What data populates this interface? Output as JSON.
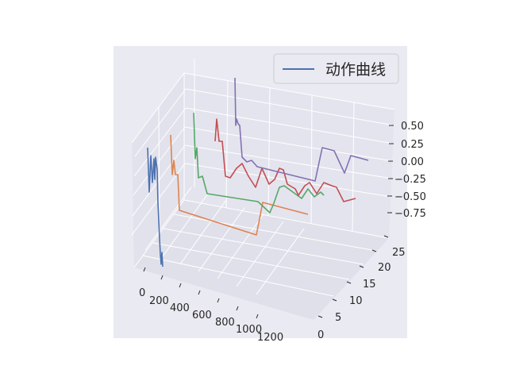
{
  "chart_data": {
    "type": "line",
    "projection": "3d",
    "legend": {
      "label": "动作曲线",
      "placement": "top-right",
      "color": "#4c72b0"
    },
    "axes": {
      "x": {
        "ticks": [
          0,
          200,
          400,
          600,
          800,
          1000,
          1200
        ]
      },
      "y": {
        "ticks": [
          0,
          5,
          10,
          15,
          20,
          25
        ]
      },
      "z": {
        "ticks": [
          "0.50",
          "0.25",
          "0.00",
          "−0.25",
          "−0.50",
          "−0.75"
        ]
      }
    },
    "series": [
      {
        "color": "#4c72b0",
        "points": [
          [
            186,
            186
          ],
          [
            188,
            242
          ],
          [
            190,
            196
          ],
          [
            192,
            230
          ],
          [
            194,
            200
          ],
          [
            195,
            226
          ],
          [
            196,
            198
          ],
          [
            198,
            214
          ],
          [
            199,
            256
          ],
          [
            201,
            300
          ],
          [
            202,
            320
          ],
          [
            203,
            333
          ],
          [
            204,
            318
          ],
          [
            205,
            336
          ]
        ]
      },
      {
        "color": "#dd8452",
        "points": [
          [
            215,
            170
          ],
          [
            217,
            220
          ],
          [
            219,
            202
          ],
          [
            221,
            220
          ],
          [
            224,
            220
          ],
          [
            226,
            265
          ],
          [
            323,
            296
          ],
          [
            331,
            255
          ],
          [
            388,
            270
          ]
        ]
      },
      {
        "color": "#55a868",
        "points": [
          [
            244,
            142
          ],
          [
            246,
            200
          ],
          [
            248,
            186
          ],
          [
            250,
            224
          ],
          [
            255,
            222
          ],
          [
            261,
            244
          ],
          [
            325,
            254
          ],
          [
            340,
            268
          ],
          [
            345,
            256
          ],
          [
            352,
            236
          ],
          [
            358,
            234
          ],
          [
            380,
            250
          ],
          [
            388,
            238
          ],
          [
            396,
            248
          ],
          [
            404,
            242
          ],
          [
            408,
            246
          ]
        ]
      },
      {
        "color": "#c44e52",
        "points": [
          [
            271,
            178
          ],
          [
            273,
            150
          ],
          [
            276,
            178
          ],
          [
            280,
            178
          ],
          [
            284,
            222
          ],
          [
            290,
            224
          ],
          [
            298,
            212
          ],
          [
            305,
            206
          ],
          [
            313,
            222
          ],
          [
            322,
            236
          ],
          [
            330,
            212
          ],
          [
            339,
            232
          ],
          [
            346,
            226
          ],
          [
            352,
            212
          ],
          [
            357,
            214
          ],
          [
            362,
            232
          ],
          [
            372,
            238
          ],
          [
            376,
            246
          ],
          [
            384,
            234
          ],
          [
            390,
            230
          ],
          [
            399,
            244
          ],
          [
            408,
            230
          ],
          [
            418,
            234
          ],
          [
            424,
            236
          ],
          [
            433,
            254
          ],
          [
            448,
            250
          ]
        ]
      },
      {
        "color": "#8172b3",
        "points": [
          [
            296,
            98
          ],
          [
            297,
            158
          ],
          [
            298,
            150
          ],
          [
            300,
            156
          ],
          [
            302,
            158
          ],
          [
            305,
            198
          ],
          [
            311,
            204
          ],
          [
            317,
            202
          ],
          [
            324,
            210
          ],
          [
            397,
            228
          ],
          [
            406,
            186
          ],
          [
            421,
            190
          ],
          [
            434,
            218
          ],
          [
            442,
            196
          ],
          [
            464,
            202
          ]
        ]
      }
    ]
  }
}
